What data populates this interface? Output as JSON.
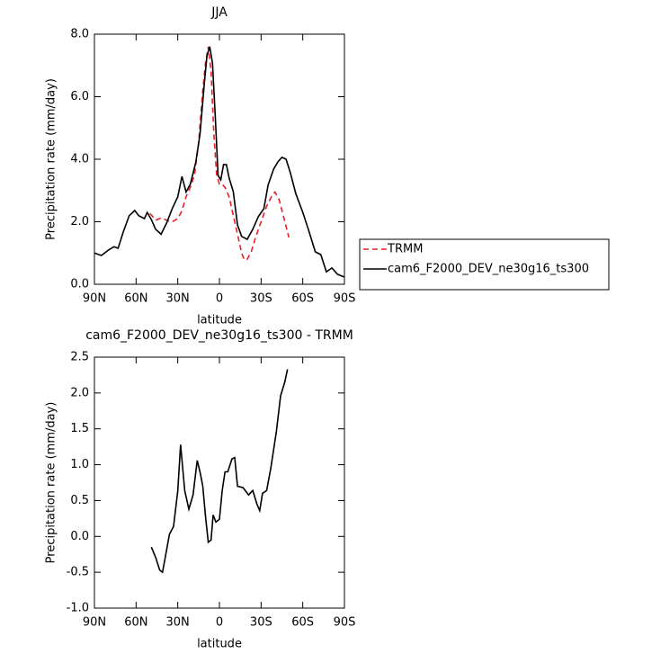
{
  "chart_data": [
    {
      "type": "line",
      "title": "JJA",
      "xlabel": "latitude",
      "ylabel": "Precipitation rate (mm/day)",
      "xlim": [
        90,
        -90
      ],
      "xticks": [
        {
          "value": 90,
          "label": "90N"
        },
        {
          "value": 60,
          "label": "60N"
        },
        {
          "value": 30,
          "label": "30N"
        },
        0,
        {
          "value": -30,
          "label": "30S"
        },
        {
          "value": -60,
          "label": "60S"
        },
        {
          "value": -90,
          "label": "90S"
        }
      ],
      "ylim": [
        0,
        8
      ],
      "yticks": [
        {
          "value": 0,
          "label": "0.0"
        },
        {
          "value": 2,
          "label": "2.0"
        },
        {
          "value": 4,
          "label": "4.0"
        },
        {
          "value": 6,
          "label": "6.0"
        },
        {
          "value": 8,
          "label": "8.0"
        }
      ],
      "legend": "outside-right",
      "series": [
        {
          "name": "TRMM",
          "color": "#e8202a",
          "dashed": true,
          "x": [
            50,
            46,
            42,
            38,
            34,
            30,
            27,
            24,
            21,
            18,
            15,
            12,
            10,
            8,
            6,
            4,
            2,
            0,
            -2,
            -4,
            -7,
            -10,
            -13,
            -16,
            -18,
            -20,
            -23,
            -26,
            -30,
            -34,
            -38,
            -40,
            -43,
            -46,
            -50
          ],
          "values": [
            2.27,
            2.05,
            2.12,
            2.05,
            2.0,
            2.1,
            2.35,
            2.8,
            3.1,
            3.5,
            4.5,
            6.2,
            7.1,
            7.6,
            6.8,
            4.8,
            3.5,
            3.2,
            3.2,
            3.1,
            2.8,
            2.2,
            1.6,
            1.0,
            0.78,
            0.8,
            1.05,
            1.5,
            2.0,
            2.5,
            2.85,
            2.95,
            2.7,
            2.2,
            1.5
          ]
        },
        {
          "name": "cam6_F2000_DEV_ne30g16_ts300",
          "color": "#000000",
          "dashed": false,
          "x": [
            90,
            85,
            80,
            76,
            73,
            69,
            65,
            61,
            58,
            54,
            52,
            49,
            46,
            42,
            38,
            34,
            30,
            27,
            24,
            21,
            17,
            14,
            11,
            9,
            7,
            5,
            3,
            1,
            -1,
            -3,
            -5,
            -7,
            -10,
            -13,
            -16,
            -20,
            -24,
            -28,
            -32,
            -35,
            -39,
            -42,
            -45,
            -48,
            -51,
            -55,
            -60,
            -64,
            -69,
            -73,
            -77,
            -81,
            -85,
            -90
          ],
          "values": [
            1.0,
            0.92,
            1.09,
            1.2,
            1.15,
            1.7,
            2.19,
            2.36,
            2.19,
            2.1,
            2.3,
            2.07,
            1.76,
            1.6,
            1.96,
            2.42,
            2.8,
            3.45,
            2.95,
            3.2,
            3.9,
            4.8,
            6.36,
            7.3,
            7.6,
            7.07,
            5.35,
            3.48,
            3.34,
            3.83,
            3.83,
            3.4,
            2.96,
            1.9,
            1.53,
            1.44,
            1.76,
            2.16,
            2.42,
            3.17,
            3.68,
            3.91,
            4.06,
            4.0,
            3.57,
            2.9,
            2.3,
            1.76,
            1.04,
            0.95,
            0.4,
            0.52,
            0.32,
            0.23
          ]
        }
      ]
    },
    {
      "type": "line",
      "title": "cam6_F2000_DEV_ne30g16_ts300 - TRMM",
      "xlabel": "latitude",
      "ylabel": "Precipitation rate (mm/day)",
      "xlim": [
        90,
        -90
      ],
      "xticks": [
        {
          "value": 90,
          "label": "90N"
        },
        {
          "value": 60,
          "label": "60N"
        },
        {
          "value": 30,
          "label": "30N"
        },
        0,
        {
          "value": -30,
          "label": "30S"
        },
        {
          "value": -60,
          "label": "60S"
        },
        {
          "value": -90,
          "label": "90S"
        }
      ],
      "ylim": [
        -1,
        2.5
      ],
      "yticks": [
        {
          "value": -1,
          "label": "-1.0"
        },
        {
          "value": -0.5,
          "label": "-0.5"
        },
        {
          "value": 0,
          "label": "0.0"
        },
        0.5,
        {
          "value": 1,
          "label": "1.0"
        },
        1.5,
        {
          "value": 2,
          "label": "2.0"
        },
        2.5
      ],
      "series": [
        {
          "color": "#000000",
          "dashed": false,
          "x": [
            49,
            46,
            43,
            41,
            39,
            36,
            33,
            30,
            28,
            25,
            22,
            19,
            16,
            14,
            12,
            10,
            8,
            6,
            4.5,
            2.5,
            0,
            -2,
            -4,
            -6,
            -9,
            -11,
            -13,
            -17,
            -21,
            -24,
            -27,
            -29,
            -31,
            -34,
            -37,
            -41,
            -44,
            -47,
            -49
          ],
          "values": [
            -0.15,
            -0.29,
            -0.47,
            -0.5,
            -0.29,
            0.03,
            0.14,
            0.64,
            1.28,
            0.64,
            0.38,
            0.58,
            1.06,
            0.9,
            0.7,
            0.27,
            -0.08,
            -0.05,
            0.3,
            0.2,
            0.24,
            0.64,
            0.9,
            0.9,
            1.08,
            1.1,
            0.7,
            0.68,
            0.58,
            0.64,
            0.45,
            0.36,
            0.6,
            0.64,
            0.95,
            1.46,
            1.96,
            2.15,
            2.33
          ]
        }
      ]
    }
  ]
}
